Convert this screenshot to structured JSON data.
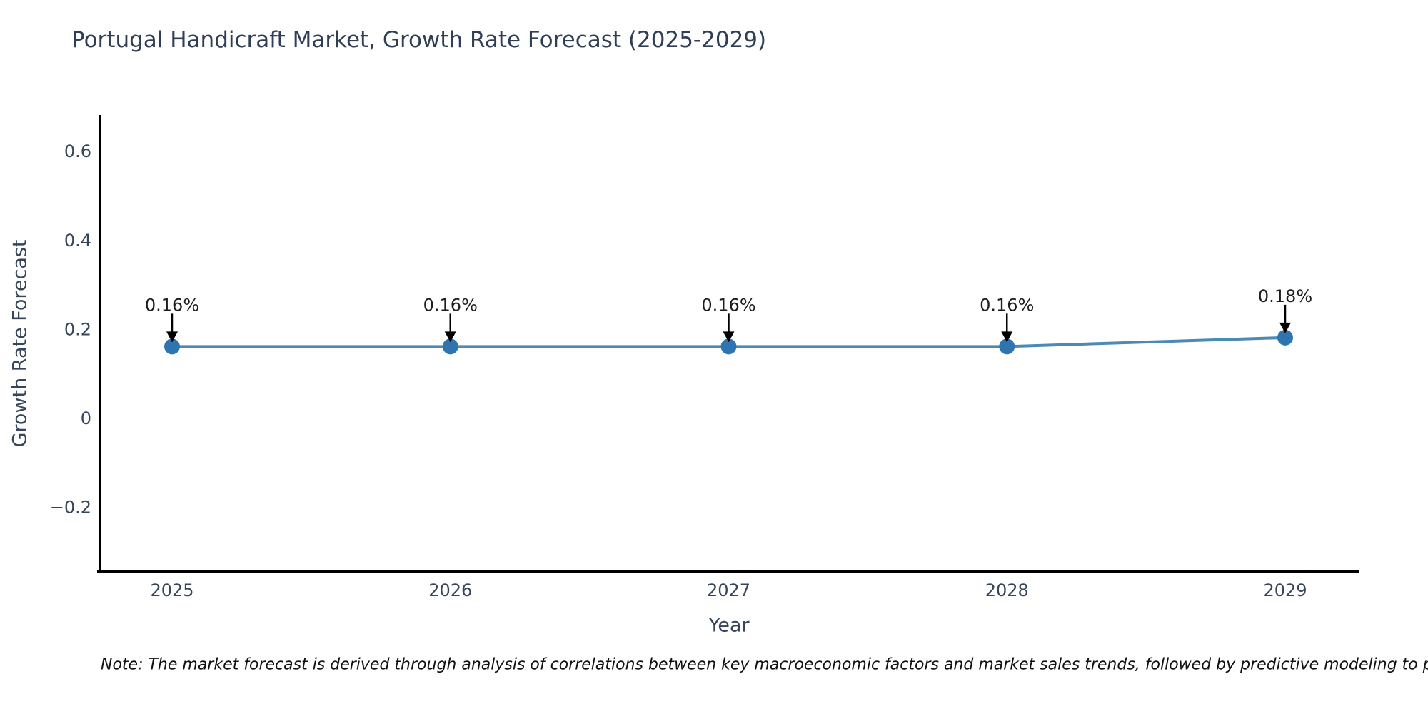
{
  "title": "Portugal Handicraft Market, Growth Rate Forecast (2025-2029)",
  "note": "Note: The market forecast is derived through analysis of correlations between key macroeconomic factors and market sales trends, followed by predictive modeling to project future sa",
  "chart_data": {
    "type": "line",
    "title": "Portugal Handicraft Market, Growth Rate Forecast (2025-2029)",
    "xlabel": "Year",
    "ylabel": "Growth Rate Forecast",
    "x": [
      2025,
      2026,
      2027,
      2028,
      2029
    ],
    "xtick_labels": [
      "2025",
      "2026",
      "2027",
      "2028",
      "2029"
    ],
    "values": [
      0.16,
      0.16,
      0.16,
      0.16,
      0.18
    ],
    "point_labels": [
      "0.16%",
      "0.16%",
      "0.16%",
      "0.16%",
      "0.18%"
    ],
    "yticks": [
      0.6,
      0.4,
      0.2,
      0,
      -0.2
    ],
    "ytick_labels": [
      "0.6",
      "0.4",
      "0.2",
      "0",
      "−0.2"
    ],
    "ylim": [
      -0.35,
      0.68
    ],
    "grid": false,
    "legend": "none",
    "annotations": "value labels with downward black arrows above each marker",
    "colors": {
      "line": "#4a8ab5",
      "marker": "#2e74b0",
      "arrow": "#000000",
      "annotation_text": "#1d1d1d",
      "axis_spine": "#000000",
      "tick_text": "#36455a",
      "title_text": "#2f3e54"
    }
  }
}
